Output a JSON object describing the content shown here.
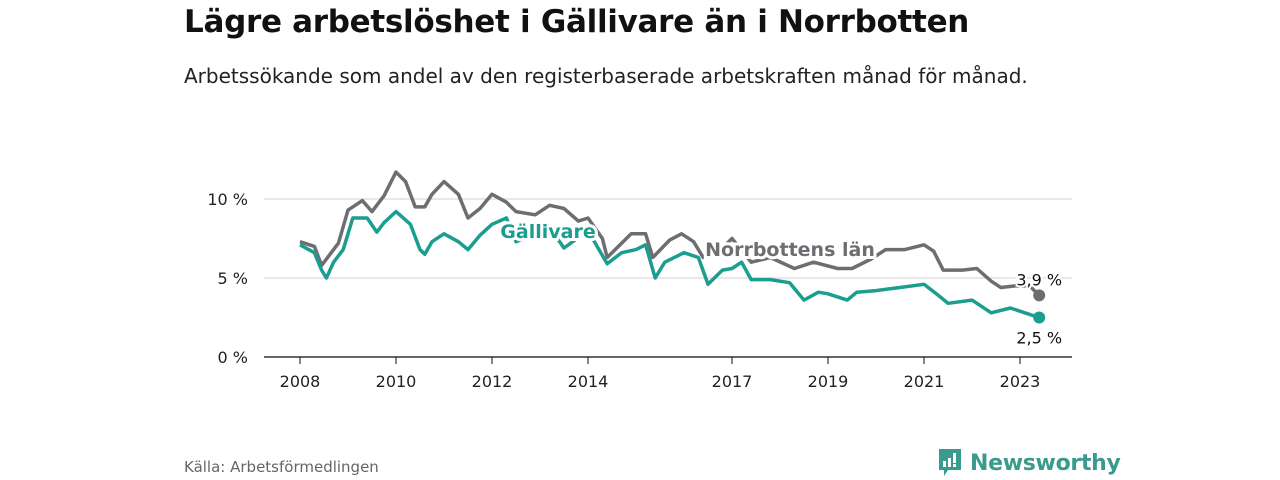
{
  "title": "Lägre arbetslöshet i Gällivare än i Norrbotten",
  "subtitle": "Arbetssökande som andel av den registerbaserade arbetskraften månad för månad.",
  "source": "Källa: Arbetsförmedlingen",
  "brand": {
    "name": "Newsworthy",
    "color": "#3a9a8e",
    "icon": "newsworthy-logo-icon"
  },
  "chart_data": {
    "type": "line",
    "title": "Lägre arbetslöshet i Gällivare än i Norrbotten",
    "xlabel": "",
    "ylabel": "",
    "xlim": [
      2007.6,
      2024.2
    ],
    "ylim": [
      0,
      11.5
    ],
    "grid": true,
    "y_ticks": [
      {
        "value": 0,
        "label": "0 %"
      },
      {
        "value": 5,
        "label": "5 %"
      },
      {
        "value": 10,
        "label": "10 %"
      }
    ],
    "x_ticks": [
      {
        "value": 2008,
        "label": "2008"
      },
      {
        "value": 2010,
        "label": "2010"
      },
      {
        "value": 2012,
        "label": "2012"
      },
      {
        "value": 2014,
        "label": "2014"
      },
      {
        "value": 2017,
        "label": "2017"
      },
      {
        "value": 2019,
        "label": "2019"
      },
      {
        "value": 2021,
        "label": "2021"
      },
      {
        "value": 2023,
        "label": "2023"
      }
    ],
    "series": [
      {
        "name": "Norrbottens län",
        "color": "#6e6d72",
        "end_label": "3,9 %",
        "x": [
          2008.0,
          2008.3,
          2008.45,
          2008.8,
          2009.0,
          2009.3,
          2009.5,
          2009.75,
          2010.0,
          2010.2,
          2010.4,
          2010.6,
          2010.75,
          2011.0,
          2011.3,
          2011.5,
          2011.75,
          2012.0,
          2012.3,
          2012.5,
          2012.9,
          2013.2,
          2013.5,
          2013.8,
          2014.0,
          2014.3,
          2014.4,
          2014.9,
          2015.2,
          2015.35,
          2015.7,
          2015.95,
          2016.2,
          2016.4,
          2016.7,
          2017.0,
          2017.4,
          2017.8,
          2018.3,
          2018.7,
          2019.2,
          2019.5,
          2019.9,
          2020.2,
          2020.6,
          2021.0,
          2021.2,
          2021.4,
          2021.8,
          2022.1,
          2022.4,
          2022.6,
          2022.9,
          2023.2,
          2023.4
        ],
        "y": [
          7.3,
          7.0,
          5.8,
          7.2,
          9.3,
          9.9,
          9.2,
          10.2,
          11.7,
          11.1,
          9.5,
          9.5,
          10.3,
          11.1,
          10.3,
          8.8,
          9.4,
          10.3,
          9.8,
          9.2,
          9.0,
          9.6,
          9.4,
          8.6,
          8.8,
          7.5,
          6.3,
          7.8,
          7.8,
          6.3,
          7.4,
          7.8,
          7.3,
          6.3,
          6.6,
          7.5,
          6.0,
          6.3,
          5.6,
          6.0,
          5.6,
          5.6,
          6.2,
          6.8,
          6.8,
          7.1,
          6.7,
          5.5,
          5.5,
          5.6,
          4.8,
          4.4,
          4.5,
          4.5,
          3.9
        ]
      },
      {
        "name": "Gällivare",
        "color": "#1b9e8f",
        "end_label": "2,5 %",
        "x": [
          2008.0,
          2008.3,
          2008.45,
          2008.55,
          2008.7,
          2008.9,
          2009.1,
          2009.4,
          2009.6,
          2009.75,
          2010.0,
          2010.3,
          2010.5,
          2010.6,
          2010.75,
          2011.0,
          2011.3,
          2011.5,
          2011.75,
          2012.0,
          2012.3,
          2012.5,
          2012.9,
          2013.2,
          2013.5,
          2014.0,
          2014.4,
          2014.7,
          2015.0,
          2015.2,
          2015.4,
          2015.6,
          2016.0,
          2016.3,
          2016.5,
          2016.8,
          2017.0,
          2017.2,
          2017.4,
          2017.8,
          2018.2,
          2018.5,
          2018.8,
          2019.0,
          2019.4,
          2019.6,
          2020.0,
          2020.5,
          2021.0,
          2021.3,
          2021.5,
          2022.0,
          2022.4,
          2022.8,
          2023.1,
          2023.4
        ],
        "y": [
          7.1,
          6.6,
          5.5,
          5.0,
          6.0,
          6.8,
          8.8,
          8.8,
          7.9,
          8.5,
          9.2,
          8.4,
          6.8,
          6.5,
          7.3,
          7.8,
          7.3,
          6.8,
          7.7,
          8.4,
          8.8,
          7.3,
          7.8,
          8.2,
          6.9,
          8.0,
          5.9,
          6.6,
          6.8,
          7.1,
          5.0,
          6.0,
          6.6,
          6.3,
          4.6,
          5.5,
          5.6,
          6.0,
          4.9,
          4.9,
          4.7,
          3.6,
          4.1,
          4.0,
          3.6,
          4.1,
          4.2,
          4.4,
          4.6,
          3.9,
          3.4,
          3.6,
          2.8,
          3.1,
          2.8,
          2.5
        ]
      }
    ]
  }
}
